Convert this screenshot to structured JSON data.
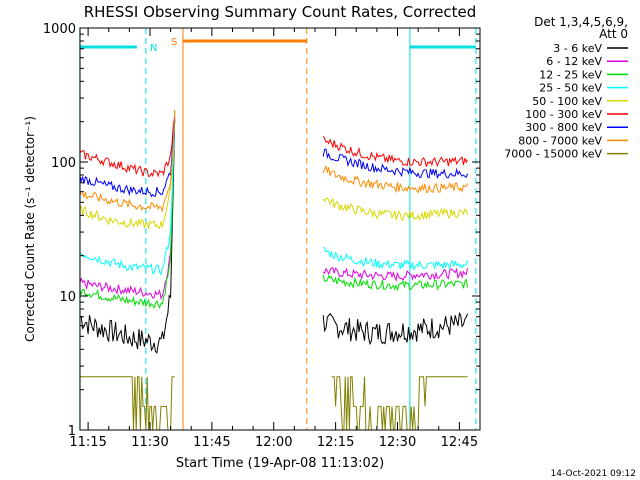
{
  "chart_data": {
    "type": "line",
    "title": "RHESSI Observing Summary Count Rates, Corrected",
    "xlabel": "Start Time (19-Apr-08 11:13:02)",
    "ylabel": "Corrected Count Rate (s⁻¹ detector⁻¹)",
    "y_scale": "log",
    "ylim": [
      1,
      1000
    ],
    "xlim": [
      "11:13:02",
      "12:50:00"
    ],
    "xtick_labels": [
      "11:15",
      "11:30",
      "11:45",
      "12:00",
      "12:15",
      "12:30",
      "12:45"
    ],
    "ytick_labels": [
      "1",
      "10",
      "100",
      "1000"
    ],
    "legend_header": [
      "Det 1,3,4,5,6,9,",
      "Att 0"
    ],
    "legend_position": "right",
    "series": [
      {
        "name": "3 - 6 keV",
        "color": "#000000",
        "segments": [
          {
            "x": [
              "11:13",
              "11:15",
              "11:20",
              "11:25",
              "11:30",
              "11:33",
              "11:35",
              "11:36"
            ],
            "y": [
              7,
              6.2,
              5.5,
              4.9,
              4.6,
              4.5,
              10,
              230
            ]
          },
          {
            "x": [
              "12:12",
              "12:14",
              "12:17",
              "12:20",
              "12:25",
              "12:30",
              "12:35",
              "12:40",
              "12:47"
            ],
            "y": [
              6.5,
              6.0,
              5.8,
              5.5,
              5.3,
              5.5,
              5.6,
              5.9,
              6.2
            ]
          }
        ]
      },
      {
        "name": "6 - 12 keV",
        "color": "#e000e0",
        "segments": [
          {
            "x": [
              "11:13",
              "11:20",
              "11:25",
              "11:30",
              "11:33",
              "11:35",
              "11:36"
            ],
            "y": [
              12.5,
              11.5,
              11.0,
              10.5,
              10.2,
              20,
              230
            ]
          },
          {
            "x": [
              "12:12",
              "12:15",
              "12:20",
              "12:25",
              "12:30",
              "12:35",
              "12:40",
              "12:47"
            ],
            "y": [
              15.5,
              15.0,
              14.5,
              14.2,
              14.0,
              14.5,
              14.5,
              15.0
            ]
          }
        ]
      },
      {
        "name": "12 - 25 keV",
        "color": "#00e000",
        "segments": [
          {
            "x": [
              "11:13",
              "11:20",
              "11:25",
              "11:30",
              "11:33",
              "11:35",
              "11:36"
            ],
            "y": [
              11.0,
              9.8,
              9.2,
              8.9,
              8.8,
              18,
              230
            ]
          },
          {
            "x": [
              "12:12",
              "12:15",
              "12:20",
              "12:25",
              "12:30",
              "12:35",
              "12:40",
              "12:47"
            ],
            "y": [
              13.5,
              13.0,
              12.5,
              12.2,
              12.0,
              12.0,
              12.2,
              12.3
            ]
          }
        ]
      },
      {
        "name": "25 - 50 keV",
        "color": "#00ffff",
        "segments": [
          {
            "x": [
              "11:13",
              "11:20",
              "11:25",
              "11:30",
              "11:33",
              "11:35",
              "11:36"
            ],
            "y": [
              21,
              18,
              16.5,
              16,
              15.5,
              30,
              230
            ]
          },
          {
            "x": [
              "12:12",
              "12:15",
              "12:20",
              "12:25",
              "12:30",
              "12:35",
              "12:40",
              "12:47"
            ],
            "y": [
              22,
              20,
              18.5,
              17.5,
              17,
              17,
              17,
              17.2
            ]
          }
        ]
      },
      {
        "name": "50 - 100 keV",
        "color": "#d8d800",
        "segments": [
          {
            "x": [
              "11:13",
              "11:20",
              "11:25",
              "11:30",
              "11:33",
              "11:35",
              "11:36"
            ],
            "y": [
              44,
              37,
              35,
              34,
              34,
              60,
              230
            ]
          },
          {
            "x": [
              "12:12",
              "12:15",
              "12:20",
              "12:25",
              "12:30",
              "12:35",
              "12:40",
              "12:47"
            ],
            "y": [
              55,
              48,
              44,
              41,
              40,
              40,
              41,
              42
            ]
          }
        ]
      },
      {
        "name": "100 - 300 keV",
        "color": "#ff0000",
        "segments": [
          {
            "x": [
              "11:13",
              "11:20",
              "11:25",
              "11:30",
              "11:33",
              "11:35",
              "11:36"
            ],
            "y": [
              115,
              100,
              90,
              82,
              82,
              110,
              230
            ]
          },
          {
            "x": [
              "12:12",
              "12:15",
              "12:20",
              "12:25",
              "12:30",
              "12:35",
              "12:40",
              "12:47"
            ],
            "y": [
              145,
              135,
              118,
              108,
              102,
              100,
              100,
              102
            ]
          }
        ]
      },
      {
        "name": "300 - 800 keV",
        "color": "#0000ff",
        "segments": [
          {
            "x": [
              "11:13",
              "11:20",
              "11:25",
              "11:30",
              "11:33",
              "11:35",
              "11:36"
            ],
            "y": [
              76,
              66,
              62,
              60,
              60,
              85,
              230
            ]
          },
          {
            "x": [
              "12:12",
              "12:15",
              "12:20",
              "12:25",
              "12:30",
              "12:35",
              "12:40",
              "12:47"
            ],
            "y": [
              118,
              108,
              98,
              90,
              86,
              83,
              82,
              82
            ]
          }
        ]
      },
      {
        "name": "800 - 7000 keV",
        "color": "#ff8c00",
        "segments": [
          {
            "x": [
              "11:13",
              "11:20",
              "11:25",
              "11:30",
              "11:33",
              "11:35",
              "11:36"
            ],
            "y": [
              58,
              52,
              48,
              46,
              46,
              70,
              230
            ]
          },
          {
            "x": [
              "12:12",
              "12:15",
              "12:20",
              "12:25",
              "12:30",
              "12:35",
              "12:40",
              "12:47"
            ],
            "y": [
              88,
              80,
              72,
              68,
              65,
              64,
              64,
              65
            ]
          }
        ]
      },
      {
        "name": "7000 - 15000 keV",
        "color": "#808000",
        "segments": [
          {
            "x": [
              "11:13",
              "11:24",
              "11:30",
              "11:35",
              "11:36"
            ],
            "y": [
              2.5,
              2.5,
              1.5,
              1.5,
              2.5
            ]
          },
          {
            "x": [
              "12:14",
              "12:23",
              "12:32",
              "12:38",
              "12:47"
            ],
            "y": [
              2.5,
              1.5,
              1.5,
              2.5,
              2.5
            ]
          }
        ]
      }
    ],
    "annotations": [
      {
        "text": "N",
        "color": "#00e0e0",
        "x_start": "11:13",
        "x_end": "11:29"
      },
      {
        "text": "",
        "color": "#00e0e0",
        "x_start": "12:33",
        "x_end": "12:49"
      },
      {
        "text": "S",
        "color": "#ff8000",
        "x_start": "11:38",
        "x_end": "12:08"
      }
    ],
    "vertical_lines": [
      {
        "x": "11:13",
        "color": "#00e0e0",
        "style": "solid"
      },
      {
        "x": "11:29",
        "color": "#00e0e0",
        "style": "dashed"
      },
      {
        "x": "11:38",
        "color": "#ff8000",
        "style": "solid"
      },
      {
        "x": "12:08",
        "color": "#ff8000",
        "style": "dashed"
      },
      {
        "x": "12:33",
        "color": "#00e0e0",
        "style": "solid"
      },
      {
        "x": "12:49",
        "color": "#00e0e0",
        "style": "dashed"
      }
    ],
    "footer": "14-Oct-2021 09:12"
  }
}
